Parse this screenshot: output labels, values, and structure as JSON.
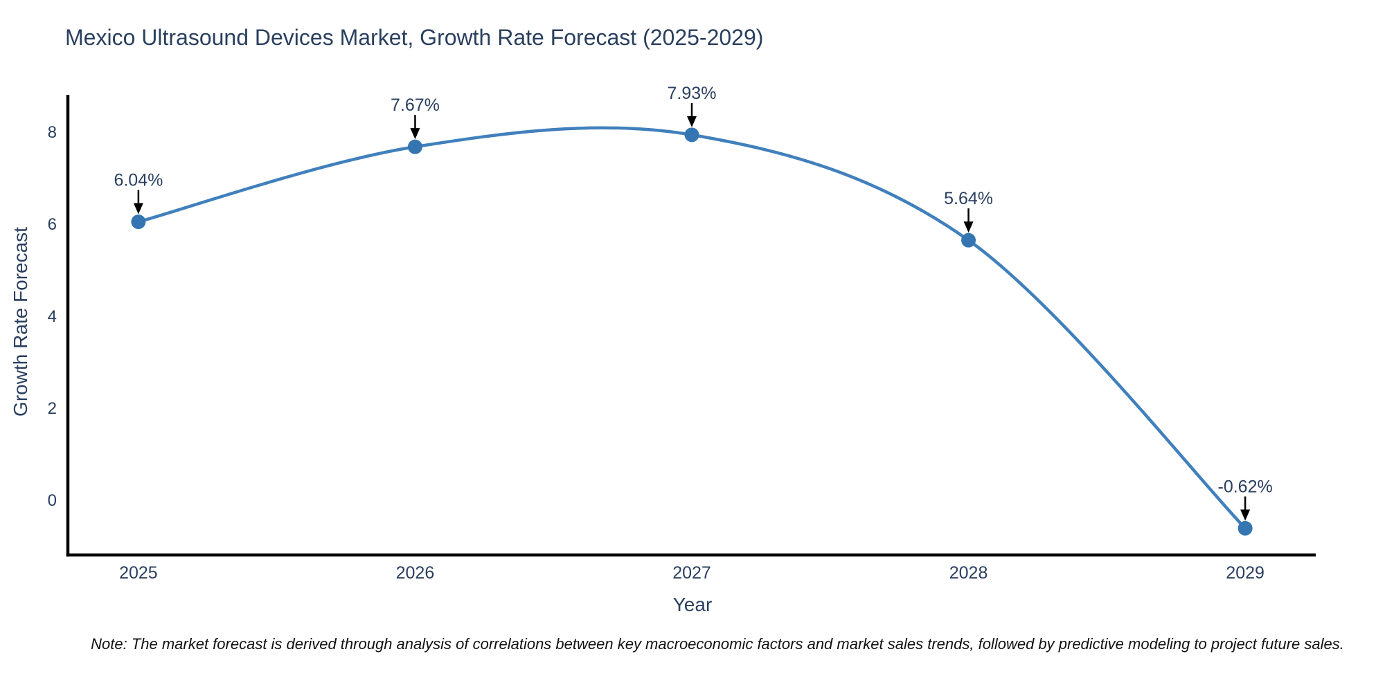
{
  "chart_data": {
    "type": "line",
    "title": "Mexico Ultrasound Devices Market, Growth Rate Forecast (2025-2029)",
    "xlabel": "Year",
    "ylabel": "Growth Rate Forecast",
    "categories": [
      2025,
      2026,
      2027,
      2028,
      2029
    ],
    "values": [
      6.04,
      7.67,
      7.93,
      5.64,
      -0.62
    ],
    "point_labels": [
      "6.04%",
      "7.67%",
      "7.93%",
      "5.64%",
      "-0.62%"
    ],
    "yticks": [
      0,
      2,
      4,
      6,
      8
    ],
    "ylim": [
      -1.2,
      8.8
    ],
    "xlim": [
      2024.745,
      2029.255
    ],
    "grid": false,
    "legend": "none",
    "line_shape": "spline",
    "line_color": "#4180bc",
    "marker_color": "#3575b2",
    "axis_color": "#000000",
    "arrow_color": "#000000",
    "text_color": "#2a3f5f",
    "note": "Note: The market forecast is derived through analysis of correlations between key macroeconomic factors and market sales trends, followed by predictive modeling to project future sales."
  }
}
